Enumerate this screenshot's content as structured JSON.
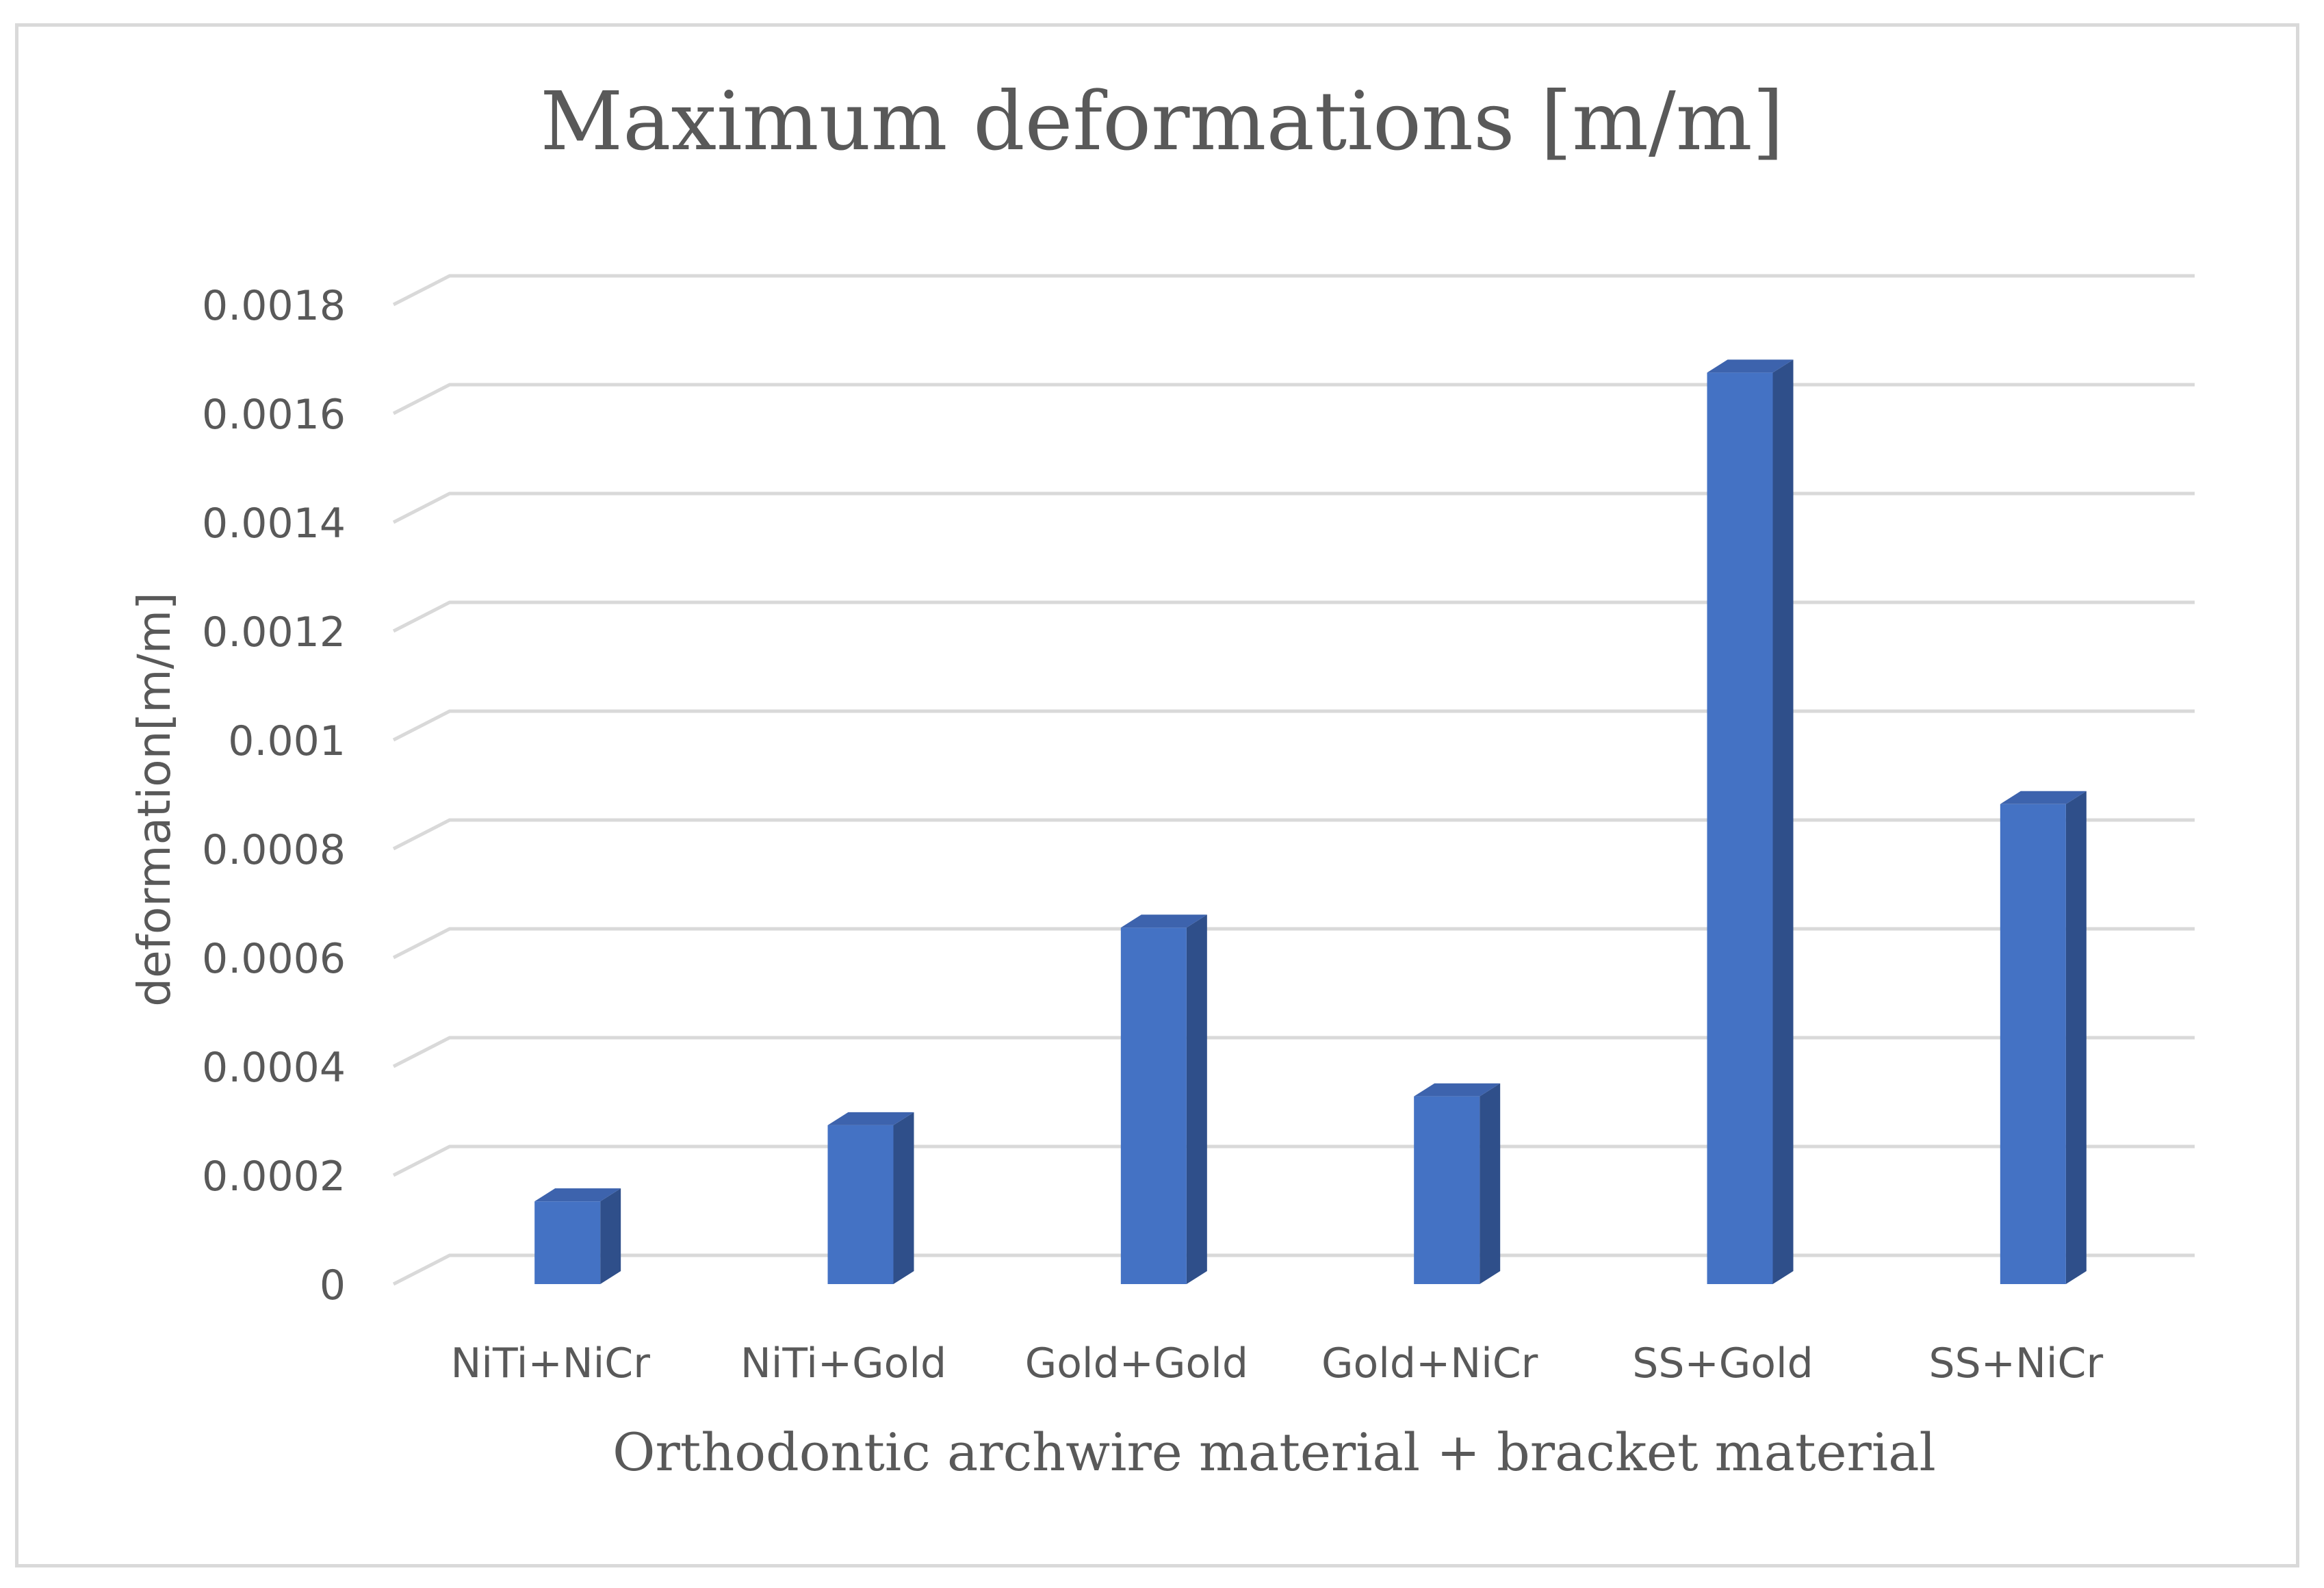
{
  "chart_data": {
    "type": "bar",
    "title": "Maximum deformations [m/m]",
    "xlabel": "Orthodontic archwire material + bracket material",
    "ylabel": "deformation[m/m]",
    "categories": [
      "NiTi+NiCr",
      "NiTi+Gold",
      "Gold+Gold",
      "Gold+NiCr",
      "SS+Gold",
      "SS+NiCr"
    ],
    "values": [
      0.000152,
      0.000292,
      0.000655,
      0.000345,
      0.001675,
      0.000882
    ],
    "ylim": [
      0,
      0.0018
    ],
    "yticks": [
      "0",
      "0.0002",
      "0.0004",
      "0.0006",
      "0.0008",
      "0.001",
      "0.0012",
      "0.0014",
      "0.0016",
      "0.0018"
    ],
    "grid": true,
    "colors": {
      "bar_front": "#4472c4",
      "bar_side": "#2f4f8a",
      "bar_top": "#3d63ad",
      "grid": "#d9d9d9",
      "text": "#595959"
    }
  }
}
